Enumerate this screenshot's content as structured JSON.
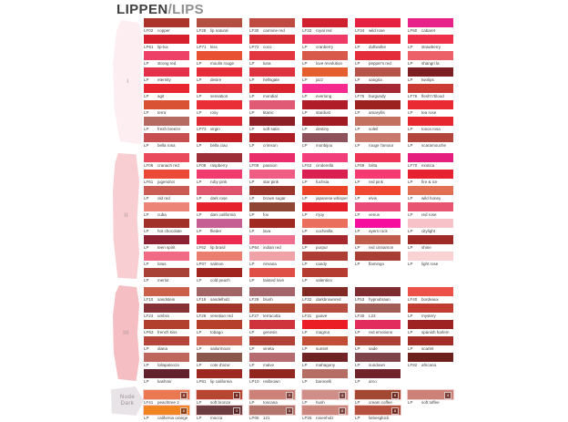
{
  "title": {
    "main": "LIPPEN",
    "accent": "/LIPS"
  },
  "sections": [
    {
      "label": "I",
      "swipe_color": "#fdeef2",
      "rows": [
        [
          {
            "code": "LF02",
            "name": "copper",
            "color": "#ab352b"
          },
          {
            "code": "LF28",
            "name": "lip natural",
            "color": "#b34f41"
          },
          {
            "code": "LF30",
            "name": "carmine red",
            "color": "#bf4a41"
          },
          {
            "code": "LF33",
            "name": "royal red",
            "color": "#cf2130"
          },
          {
            "code": "LF34",
            "name": "wild rose",
            "color": "#e62040"
          },
          {
            "code": "LF60",
            "name": "cabaret",
            "color": "#e82288"
          }
        ],
        [
          {
            "code": "LP61",
            "name": "lip-lux",
            "color": "#d6202e"
          },
          {
            "code": "LP71",
            "name": "kiss",
            "color": "#e82837"
          },
          {
            "code": "LP72",
            "name": "coco",
            "color": "#da2e36"
          },
          {
            "code": "LP",
            "name": "cranberry",
            "color": "#ef3a68"
          },
          {
            "code": "LP",
            "name": "duftwolke",
            "color": "#e32433"
          },
          {
            "code": "LP",
            "name": "strawberry",
            "color": "#ee3048"
          }
        ],
        [
          {
            "code": "LP",
            "name": "strong red",
            "color": "#ee4168"
          },
          {
            "code": "LP",
            "name": "moulin rouge",
            "color": "#e85233"
          },
          {
            "code": "LP",
            "name": "luna",
            "color": "#e23741"
          },
          {
            "code": "LP",
            "name": "love revolution",
            "color": "#d85a4b"
          },
          {
            "code": "LP",
            "name": "pepper's red",
            "color": "#e42d3a"
          },
          {
            "code": "LP",
            "name": "shangri la",
            "color": "#ec6168"
          }
        ],
        [
          {
            "code": "LP",
            "name": "eternity",
            "color": "#e4304a"
          },
          {
            "code": "LP",
            "name": "desire",
            "color": "#e52c38"
          },
          {
            "code": "LP",
            "name": "hellsgate",
            "color": "#dd3340"
          },
          {
            "code": "LP",
            "name": "jazz",
            "color": "#e55e2d"
          },
          {
            "code": "LP",
            "name": "sangria",
            "color": "#b4544a"
          },
          {
            "code": "LP",
            "name": "twolips",
            "color": "#7c1f22"
          }
        ],
        [
          {
            "code": "LP",
            "name": "agit",
            "color": "#e82630"
          },
          {
            "code": "LP",
            "name": "sensation",
            "color": "#e7333d"
          },
          {
            "code": "LP",
            "name": "mondial",
            "color": "#d9242e"
          },
          {
            "code": "LP",
            "name": "everlong",
            "color": "#f42a8e"
          },
          {
            "code": "LF75",
            "name": "burgundy",
            "color": "#a52835"
          },
          {
            "code": "LF76",
            "name": "flesh'n'blood",
            "color": "#cb3a33"
          }
        ],
        [
          {
            "code": "LP",
            "name": "terra",
            "color": "#d85233"
          },
          {
            "code": "LP",
            "name": "rosy",
            "color": "#ea2e37"
          },
          {
            "code": "LP",
            "name": "titanic",
            "color": "#e05a76"
          },
          {
            "code": "LP",
            "name": "stardust",
            "color": "#b01d29"
          },
          {
            "code": "LP",
            "name": "amaryllis",
            "color": "#9c221f"
          },
          {
            "code": "LP",
            "name": "tea rose",
            "color": "#ea2a32"
          }
        ],
        [
          {
            "code": "LP",
            "name": "fresh breeze",
            "color": "#b56a62"
          },
          {
            "code": "LP73",
            "name": "virgin",
            "color": "#de2a33"
          },
          {
            "code": "LP",
            "name": "soft satin",
            "color": "#8c2026"
          },
          {
            "code": "LP",
            "name": "destiny",
            "color": "#a11c22"
          },
          {
            "code": "LP",
            "name": "soleil",
            "color": "#c4705f"
          },
          {
            "code": "LP",
            "name": "tosca rosa",
            "color": "#e62730"
          }
        ],
        [
          {
            "code": "LP",
            "name": "bella rosa",
            "color": "#c74f4f"
          },
          {
            "code": "LP",
            "name": "bella ciao",
            "color": "#c01f26"
          },
          {
            "code": "LP",
            "name": "crimson",
            "color": "#ad1f27"
          },
          {
            "code": "LP",
            "name": "monbijou",
            "color": "#8f515c"
          },
          {
            "code": "LP",
            "name": "rouge l'amour",
            "color": "#c77a6c"
          },
          {
            "code": "LP",
            "name": "scaramouche",
            "color": "#b2463f"
          }
        ]
      ]
    },
    {
      "label": "II",
      "swipe_color": "#f8ced2",
      "rows": [
        [
          {
            "code": "LF06",
            "name": "cranach red",
            "color": "#e94a5c"
          },
          {
            "code": "LF08",
            "name": "raspberry",
            "color": "#9e2f38"
          },
          {
            "code": "LF09",
            "name": "passion",
            "color": "#e92d6b"
          },
          {
            "code": "LF63",
            "name": "cinderella",
            "color": "#f23f7c"
          },
          {
            "code": "LF69",
            "name": "lolita",
            "color": "#ec3557"
          },
          {
            "code": "LF70",
            "name": "exotica",
            "color": "#e41f7e"
          }
        ],
        [
          {
            "code": "LF61",
            "name": "jugendrot",
            "color": "#ec4a38"
          },
          {
            "code": "LP",
            "name": "ruby pink",
            "color": "#f13b6e"
          },
          {
            "code": "LP",
            "name": "star pink",
            "color": "#ef5c84"
          },
          {
            "code": "LP",
            "name": "fuchsia",
            "color": "#d92050"
          },
          {
            "code": "LP",
            "name": "red pink",
            "color": "#f43a70"
          },
          {
            "code": "LP",
            "name": "fire & ice",
            "color": "#e62231"
          }
        ],
        [
          {
            "code": "LP",
            "name": "old red",
            "color": "#c95a54"
          },
          {
            "code": "LP",
            "name": "dark rose",
            "color": "#df5570"
          },
          {
            "code": "LP",
            "name": "brown sugar",
            "color": "#9c372d"
          },
          {
            "code": "LP",
            "name": "japanese whisper",
            "color": "#ea4227"
          },
          {
            "code": "LP",
            "name": "elvis",
            "color": "#f04833"
          },
          {
            "code": "LP",
            "name": "wild honey",
            "color": "#e17055"
          }
        ],
        [
          {
            "code": "LP",
            "name": "cuba",
            "color": "#ec8577"
          },
          {
            "code": "LP",
            "name": "dani california",
            "color": "#e6222c"
          },
          {
            "code": "LP",
            "name": "fox",
            "color": "#8f4634"
          },
          {
            "code": "LP",
            "name": "n'joy",
            "color": "#e41f2a"
          },
          {
            "code": "LP",
            "name": "venus",
            "color": "#ea4a78"
          },
          {
            "code": "LP",
            "name": "red rose",
            "color": "#e75570"
          }
        ],
        [
          {
            "code": "LP",
            "name": "hot chocolate",
            "color": "#a03028"
          },
          {
            "code": "LP",
            "name": "flieder",
            "color": "#c75e93"
          },
          {
            "code": "LP",
            "name": "lava",
            "color": "#a02a22"
          },
          {
            "code": "LP",
            "name": "cochinilla",
            "color": "#ea6f5c"
          },
          {
            "code": "LP",
            "name": "ayers rock",
            "color": "#f60f9f"
          },
          {
            "code": "LP",
            "name": "citylight",
            "color": "#f7c3c8"
          }
        ],
        [
          {
            "code": "LP",
            "name": "teen spirit",
            "color": "#8c2133"
          },
          {
            "code": "LF62",
            "name": "lip brasil",
            "color": "#ea2a4e"
          },
          {
            "code": "LP64",
            "name": "indian red",
            "color": "#ee6f8e"
          },
          {
            "code": "LP",
            "name": "purpur",
            "color": "#a52830"
          },
          {
            "code": "LP",
            "name": "red cinnamon",
            "color": "#bf5c4b"
          },
          {
            "code": "LP",
            "name": "shine",
            "color": "#9e2a28"
          }
        ],
        [
          {
            "code": "LP",
            "name": "lotus",
            "color": "#f06a85"
          },
          {
            "code": "LP07",
            "name": "salmon",
            "color": "#ea7f70"
          },
          {
            "code": "LP",
            "name": "nirvana",
            "color": "#efa3a8"
          },
          {
            "code": "LP",
            "name": "candy",
            "color": "#ae3e35"
          },
          {
            "code": "LP",
            "name": "flamingo",
            "color": "#a83f35"
          },
          {
            "code": "LP",
            "name": "light rose",
            "color": "#f9d3d3"
          }
        ],
        [
          {
            "code": "LP",
            "name": "merlot",
            "color": "#a84136"
          },
          {
            "code": "LP",
            "name": "cold peach",
            "color": "#a1251f"
          },
          {
            "code": "LP",
            "name": "tainted love",
            "color": "#df4f45"
          },
          {
            "code": "LP",
            "name": "valentino",
            "color": "#b53c31"
          },
          null,
          null
        ]
      ]
    },
    {
      "label": "III",
      "swipe_color": "#f5bec2",
      "rows": [
        [
          {
            "code": "LF10",
            "name": "sandstein",
            "color": "#c96049"
          },
          {
            "code": "LF19",
            "name": "sandelholz",
            "color": "#a26467"
          },
          {
            "code": "LF29",
            "name": "blush",
            "color": "#a5646a"
          },
          {
            "code": "LF32",
            "name": "darkbrownred",
            "color": "#802a24"
          },
          {
            "code": "LF53",
            "name": "hypnobraun",
            "color": "#7d2c30"
          },
          {
            "code": "LF40",
            "name": "bordeaux",
            "color": "#ec5148"
          }
        ],
        [
          {
            "code": "LF24",
            "name": "umbra",
            "color": "#863234"
          },
          {
            "code": "LF26",
            "name": "venetian red",
            "color": "#a2342a"
          },
          {
            "code": "LF27",
            "name": "terracotta",
            "color": "#b04a32"
          },
          {
            "code": "LF31",
            "name": "guave",
            "color": "#b84e40"
          },
          {
            "code": "LF30",
            "name": "L23",
            "color": "#a15d56"
          },
          {
            "code": "LP",
            "name": "mystery",
            "color": "#c23d31"
          }
        ],
        [
          {
            "code": "LP63",
            "name": "french kiss",
            "color": "#b23f2e"
          },
          {
            "code": "LP",
            "name": "tobago",
            "color": "#b63f2c"
          },
          {
            "code": "LP",
            "name": "genesis",
            "color": "#cf343c"
          },
          {
            "code": "LP",
            "name": "magma",
            "color": "#ea1e24"
          },
          {
            "code": "LP",
            "name": "red emotions",
            "color": "#e22c5e"
          },
          {
            "code": "LP",
            "name": "spanish harlem",
            "color": "#9e2222"
          }
        ],
        [
          {
            "code": "LP",
            "name": "diana",
            "color": "#b54538"
          },
          {
            "code": "LP",
            "name": "sailormoon",
            "color": "#cd6252"
          },
          {
            "code": "LP",
            "name": "vineta",
            "color": "#b04236"
          },
          {
            "code": "LP",
            "name": "sunset",
            "color": "#c24e36"
          },
          {
            "code": "LP",
            "name": "sade",
            "color": "#ad4136"
          },
          {
            "code": "LP",
            "name": "scarlet",
            "color": "#a32e27"
          }
        ],
        [
          {
            "code": "LP",
            "name": "lollapalooza",
            "color": "#bd675c"
          },
          {
            "code": "LP",
            "name": "cote d'azur",
            "color": "#8b574a"
          },
          {
            "code": "LP",
            "name": "malve",
            "color": "#b56b70"
          },
          {
            "code": "LP",
            "name": "mahagony",
            "color": "#712225"
          },
          {
            "code": "LP",
            "name": "sundown",
            "color": "#7e444b"
          },
          {
            "code": "LF82",
            "name": "africana",
            "color": "#6d211e"
          }
        ],
        [
          {
            "code": "LP",
            "name": "kashmir",
            "color": "#61222e"
          },
          {
            "code": "LP61",
            "name": "lip california",
            "color": "#9c2a23"
          },
          {
            "code": "LP10",
            "name": "redbrown",
            "color": "#92271f"
          },
          {
            "code": "LP",
            "name": "baronelli",
            "color": "#b56e63"
          },
          {
            "code": "LP",
            "name": "arco",
            "color": "#70232a"
          },
          null
        ]
      ]
    },
    {
      "label": "Nude Dark",
      "label_lines": [
        "Nude",
        "Dark"
      ],
      "swipe_color": "#e9e4e7",
      "rows": [
        [
          {
            "code": "LF41",
            "name": "peachtree 2",
            "color": "#ea7850",
            "badge": "8"
          },
          {
            "code": "LP",
            "name": "soft bronze",
            "color": "#b8452f",
            "badge": "8"
          },
          {
            "code": "LP",
            "name": "toscana",
            "color": "#cd8279",
            "badge": "9"
          },
          {
            "code": "LP",
            "name": "hush",
            "color": "#d08e88",
            "badge": "4"
          },
          {
            "code": "LP",
            "name": "cream coffee",
            "color": "#a34832",
            "badge": "8"
          },
          {
            "code": "LP",
            "name": "soft toffee",
            "color": "#cb8176",
            "badge": "4"
          }
        ],
        [
          {
            "code": "LP",
            "name": "california orange",
            "color": "#f28522",
            "badge": "6"
          },
          {
            "code": "LP",
            "name": "mocca",
            "color": "#6c3c40",
            "badge": "3"
          },
          {
            "code": "LP06",
            "name": "121",
            "color": "#b3756b",
            "badge": "5"
          },
          {
            "code": "LP26",
            "name": "rosenholz",
            "color": "#cb867e",
            "badge": "8"
          },
          {
            "code": "LP",
            "name": "liebesglück",
            "color": "#b5503f",
            "badge": "8"
          },
          null
        ]
      ]
    }
  ]
}
